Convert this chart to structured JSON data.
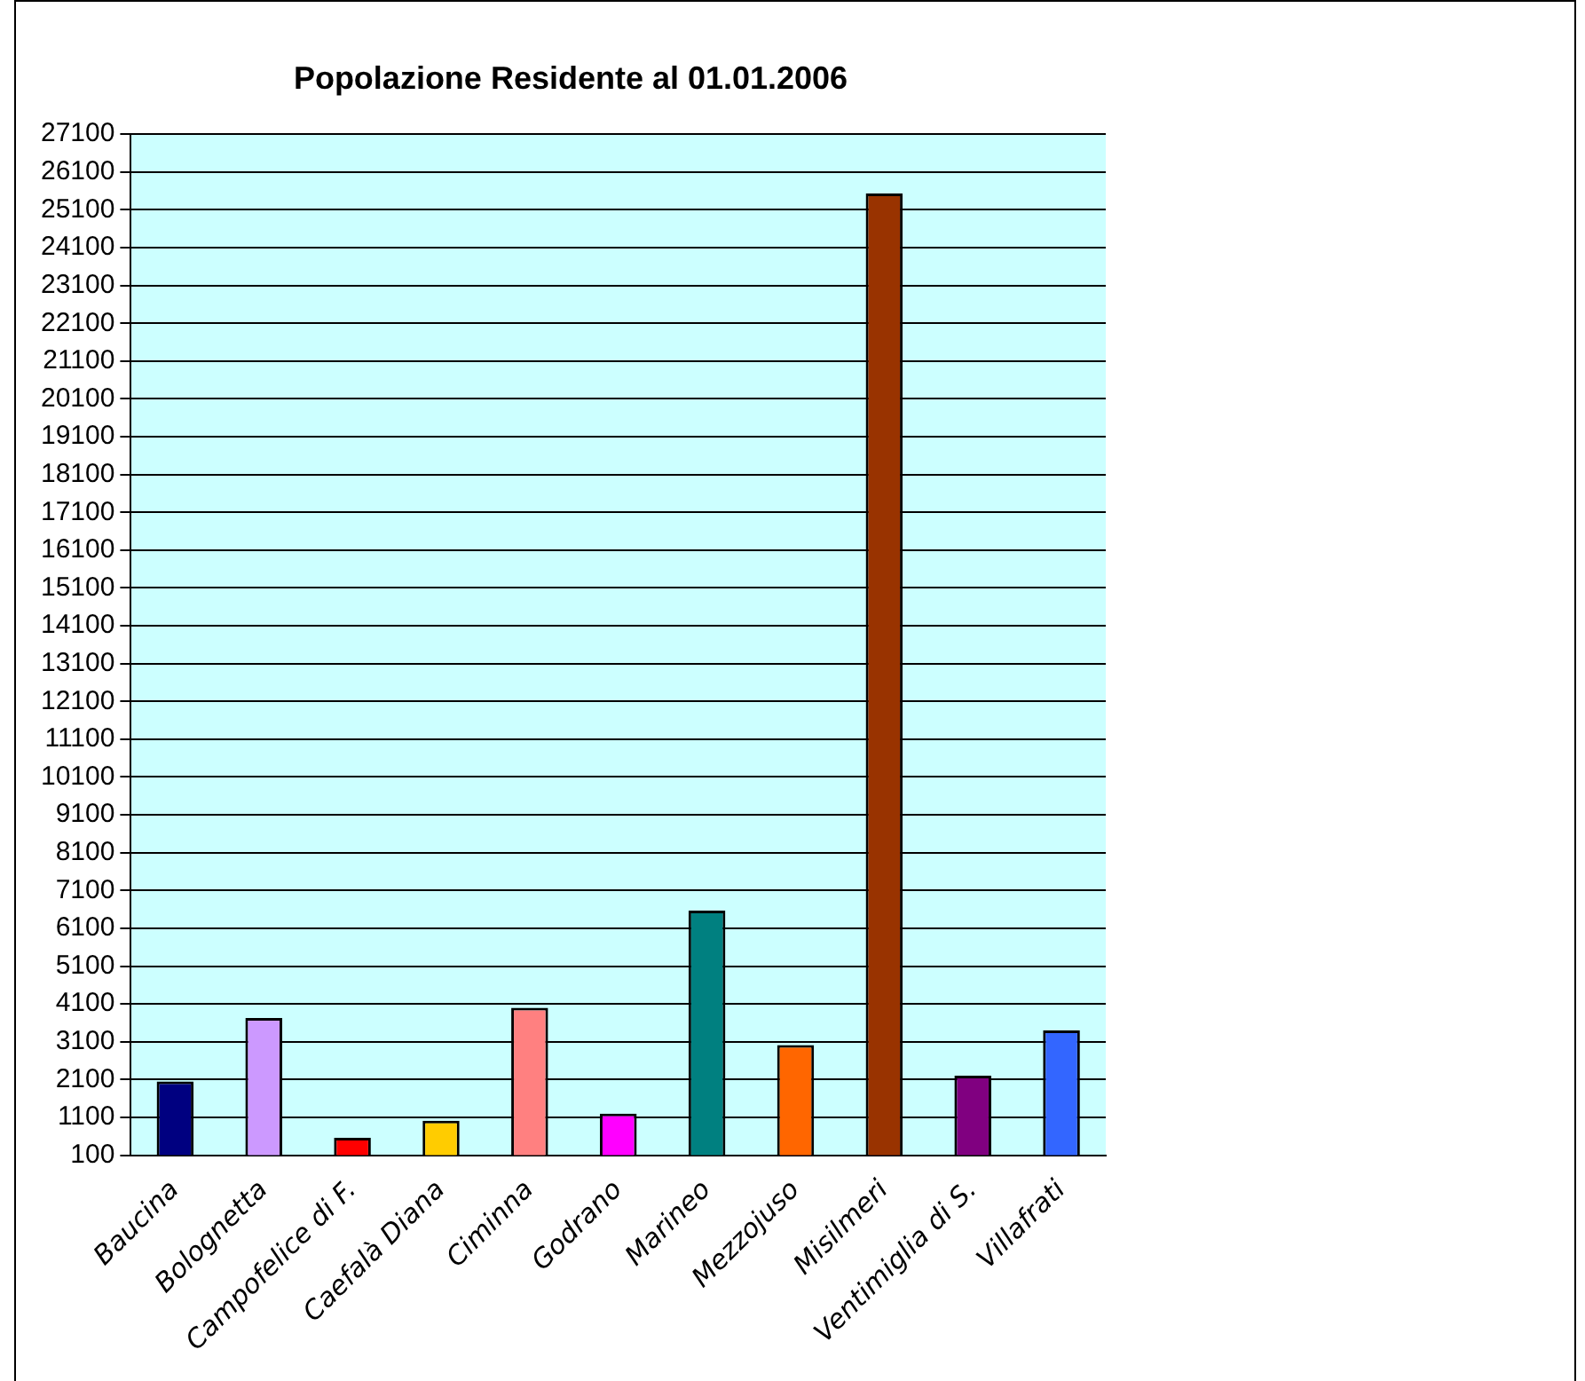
{
  "chart_data": {
    "type": "bar",
    "title": "Popolazione Residente al 01.01.2006",
    "categories": [
      "Baucina",
      "Bolognetta",
      "Campofelice di F.",
      "Caefalà Diana",
      "Ciminna",
      "Godrano",
      "Marineo",
      "Mezzojuso",
      "Misilmeri",
      "Ventimiglia di S.",
      "Villafrati"
    ],
    "values": [
      2050,
      3730,
      560,
      1010,
      4000,
      1200,
      6570,
      3010,
      25530,
      2200,
      3400
    ],
    "colors": [
      "#000080",
      "#cc99ff",
      "#ff0000",
      "#ffcc00",
      "#ff8080",
      "#ff00ff",
      "#008080",
      "#ff6600",
      "#993300",
      "#800080",
      "#3366ff"
    ],
    "ylim": [
      100,
      27100
    ],
    "yticks": [
      100,
      1100,
      2100,
      3100,
      4100,
      5100,
      6100,
      7100,
      8100,
      9100,
      10100,
      11100,
      12100,
      13100,
      14100,
      15100,
      16100,
      17100,
      18100,
      19100,
      20100,
      21100,
      22100,
      23100,
      24100,
      25100,
      26100,
      27100
    ],
    "grid": "y",
    "legend": false
  }
}
